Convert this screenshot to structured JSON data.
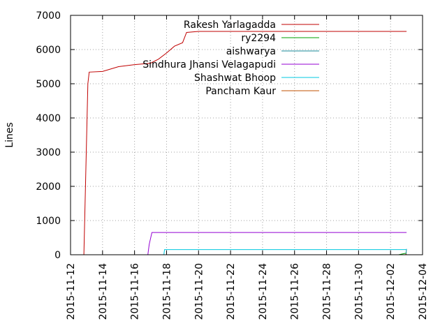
{
  "chart_data": {
    "type": "line",
    "title": "",
    "xlabel": "",
    "ylabel": "Lines",
    "xlim": [
      "2015-11-12",
      "2015-12-04"
    ],
    "ylim": [
      0,
      7000
    ],
    "x_ticks": [
      "2015-11-12",
      "2015-11-14",
      "2015-11-16",
      "2015-11-18",
      "2015-11-20",
      "2015-11-22",
      "2015-11-24",
      "2015-11-26",
      "2015-11-28",
      "2015-11-30",
      "2015-12-02",
      "2015-12-04"
    ],
    "y_ticks": [
      0,
      1000,
      2000,
      3000,
      4000,
      5000,
      6000,
      7000
    ],
    "grid": true,
    "legend_position": "top-right",
    "series": [
      {
        "name": "Rakesh Yarlagadda",
        "color": "#c00000",
        "points": [
          [
            "2015-11-12 20:00",
            0
          ],
          [
            "2015-11-13 02:00",
            5000
          ],
          [
            "2015-11-13 04:00",
            5340
          ],
          [
            "2015-11-14 00:00",
            5360
          ],
          [
            "2015-11-15 00:00",
            5500
          ],
          [
            "2015-11-16 00:00",
            5560
          ],
          [
            "2015-11-17 00:00",
            5600
          ],
          [
            "2015-11-17 12:00",
            5720
          ],
          [
            "2015-11-18 00:00",
            5900
          ],
          [
            "2015-11-18 12:00",
            6100
          ],
          [
            "2015-11-19 00:00",
            6200
          ],
          [
            "2015-11-19 06:00",
            6500
          ],
          [
            "2015-11-20 00:00",
            6530
          ],
          [
            "2015-12-03 00:00",
            6530
          ]
        ]
      },
      {
        "name": "ry2294",
        "color": "#00a000",
        "points": [
          [
            "2015-12-02 12:00",
            0
          ],
          [
            "2015-12-03 00:00",
            50
          ]
        ]
      },
      {
        "name": "aishwarya",
        "color": "#1a8a99",
        "points": [
          [
            "2015-12-02 23:00",
            0
          ],
          [
            "2015-12-03 00:00",
            170
          ]
        ]
      },
      {
        "name": "Sindhura Jhansi Velagapudi",
        "color": "#9400d3",
        "points": [
          [
            "2015-11-16 20:00",
            0
          ],
          [
            "2015-11-16 22:00",
            300
          ],
          [
            "2015-11-17 02:00",
            650
          ],
          [
            "2015-12-03 00:00",
            650
          ]
        ]
      },
      {
        "name": "Shashwat Bhoop",
        "color": "#00c8e0",
        "points": [
          [
            "2015-11-17 20:00",
            0
          ],
          [
            "2015-11-17 21:00",
            150
          ],
          [
            "2015-12-03 00:00",
            150
          ]
        ]
      },
      {
        "name": "Pancham Kaur",
        "color": "#c05000",
        "points": [
          [
            "2015-12-02 22:00",
            0
          ],
          [
            "2015-12-03 00:00",
            20
          ]
        ]
      }
    ]
  }
}
